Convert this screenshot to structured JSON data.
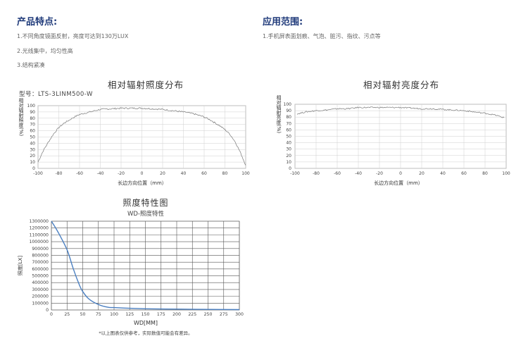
{
  "features": {
    "heading": "产品特点:",
    "items": [
      "1.不同角度镜面反射，亮度可达到130万LUX",
      "2.光线集中，均匀性高",
      "3.结构紧凑"
    ]
  },
  "applications": {
    "heading": "应用范围:",
    "items": [
      "1.手机屏表面划痕、气泡、脏污、指纹、污点等"
    ]
  },
  "model_label": "型号：LTS-3LINM500-W",
  "footnote": "*以上图表仅供参考，实际数值可能会有差异。",
  "chart_data": [
    {
      "type": "line",
      "title": "相对辐射照度分布",
      "xlabel": "长边方向位置（mm）",
      "ylabel": "相对辐射照度(%)",
      "xlim": [
        -100,
        100
      ],
      "ylim": [
        0,
        100
      ],
      "xticks": [
        "-100",
        "-80",
        "-60",
        "-40",
        "-20",
        "0",
        "20",
        "40",
        "60",
        "80",
        "100"
      ],
      "yticks": [
        "0",
        "10",
        "20",
        "30",
        "40",
        "50",
        "60",
        "70",
        "80",
        "90",
        "100"
      ],
      "grid": true,
      "color": "#777777",
      "x": [
        -100,
        -95,
        -90,
        -85,
        -80,
        -75,
        -70,
        -65,
        -60,
        -55,
        -50,
        -45,
        -40,
        -30,
        -20,
        -10,
        0,
        10,
        20,
        30,
        40,
        50,
        60,
        65,
        70,
        75,
        80,
        85,
        90,
        95,
        100
      ],
      "y": [
        10,
        28,
        42,
        55,
        65,
        72,
        77,
        82,
        86,
        88,
        90,
        92,
        94,
        95,
        96,
        96,
        96,
        95,
        94,
        92,
        90,
        87,
        82,
        78,
        73,
        68,
        62,
        54,
        42,
        25,
        5
      ]
    },
    {
      "type": "line",
      "title": "相对辐射亮度分布",
      "xlabel": "长边方向位置（mm）",
      "ylabel": "相对辐射亮度(%)",
      "xlim": [
        -100,
        100
      ],
      "ylim": [
        0,
        100
      ],
      "xticks": [
        "-100",
        "-80",
        "-60",
        "-40",
        "-20",
        "0",
        "20",
        "40",
        "60",
        "80",
        "100"
      ],
      "yticks": [
        "0",
        "10",
        "20",
        "30",
        "40",
        "50",
        "60",
        "70",
        "80",
        "90",
        "100"
      ],
      "grid": true,
      "color": "#777777",
      "x": [
        -98,
        -90,
        -80,
        -70,
        -60,
        -50,
        -40,
        -30,
        -20,
        -10,
        0,
        10,
        20,
        30,
        40,
        50,
        60,
        70,
        80,
        90,
        98
      ],
      "y": [
        85,
        88,
        90,
        91,
        93,
        93,
        95,
        95,
        95,
        95,
        95,
        94,
        93,
        93,
        92,
        91,
        90,
        88,
        86,
        83,
        79
      ]
    },
    {
      "type": "line",
      "title": "照度特性图",
      "subtitle": "WD-照度特性",
      "xlabel": "WD[MM]",
      "ylabel": "照度[LX]",
      "xlim": [
        0,
        300
      ],
      "ylim": [
        0,
        1300000
      ],
      "xticks": [
        "0",
        "25",
        "50",
        "75",
        "100",
        "125",
        "150",
        "175",
        "200",
        "225",
        "250",
        "275",
        "300"
      ],
      "yticks": [
        "0",
        "100000",
        "200000",
        "300000",
        "400000",
        "500000",
        "600000",
        "700000",
        "800000",
        "900000",
        "1000000",
        "1100000",
        "1200000",
        "1300000"
      ],
      "grid": true,
      "color": "#4a7fc1",
      "x": [
        0,
        10,
        25,
        35,
        45,
        50,
        60,
        75,
        90,
        100,
        125,
        150,
        200,
        250,
        300
      ],
      "y": [
        1300000,
        1150000,
        880000,
        600000,
        360000,
        270000,
        160000,
        80000,
        40000,
        35000,
        25000,
        18000,
        12000,
        8000,
        5000
      ]
    }
  ]
}
